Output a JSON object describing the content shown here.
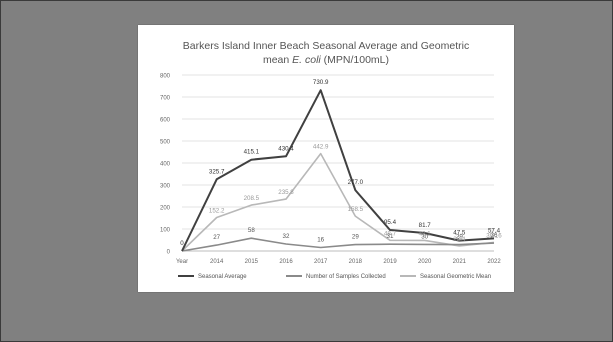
{
  "chart_data": {
    "type": "line",
    "title_line1": "Barkers Island Inner Beach Seasonal Average and Geometric",
    "title_line2_pre": "mean ",
    "title_line2_italic": "E. coli",
    "title_line2_post": " (MPN/100mL)",
    "categories": [
      "Year",
      "2014",
      "2015",
      "2016",
      "2017",
      "2018",
      "2019",
      "2020",
      "2021",
      "2022"
    ],
    "ylim": [
      0,
      800
    ],
    "yticks": [
      "0",
      "100",
      "200",
      "300",
      "400",
      "500",
      "600",
      "700",
      "800"
    ],
    "series": [
      {
        "name": "Seasonal Average",
        "color": "#404040",
        "values": [
          0,
          325.7,
          415.1,
          430.4,
          730.9,
          277.0,
          95.4,
          81.7,
          47.5,
          57.4
        ],
        "labels": [
          "0",
          "325.7",
          "415.1",
          "430.4",
          "730.9",
          "277.0",
          "95.4",
          "81.7",
          "47.5",
          "57.4"
        ]
      },
      {
        "name": "Number of Samples Collected",
        "color": "#8a8a8a",
        "values": [
          0,
          27,
          58,
          32,
          16,
          29,
          31,
          30,
          29,
          36
        ],
        "labels": [
          "",
          "27",
          "58",
          "32",
          "16",
          "29",
          "31",
          "30",
          "29",
          "36"
        ]
      },
      {
        "name": "Seasonal Geometric Mean",
        "color": "#b8b8b8",
        "values": [
          0,
          152.2,
          208.5,
          235.8,
          442.9,
          158.5,
          48.7,
          48.1,
          23.4,
          39.16
        ],
        "labels": [
          "",
          "152.2",
          "208.5",
          "235.8",
          "442.9",
          "158.5",
          "48.7",
          "48.1",
          "23.4",
          "39.16"
        ]
      }
    ],
    "legend_position": "bottom",
    "grid": true
  }
}
